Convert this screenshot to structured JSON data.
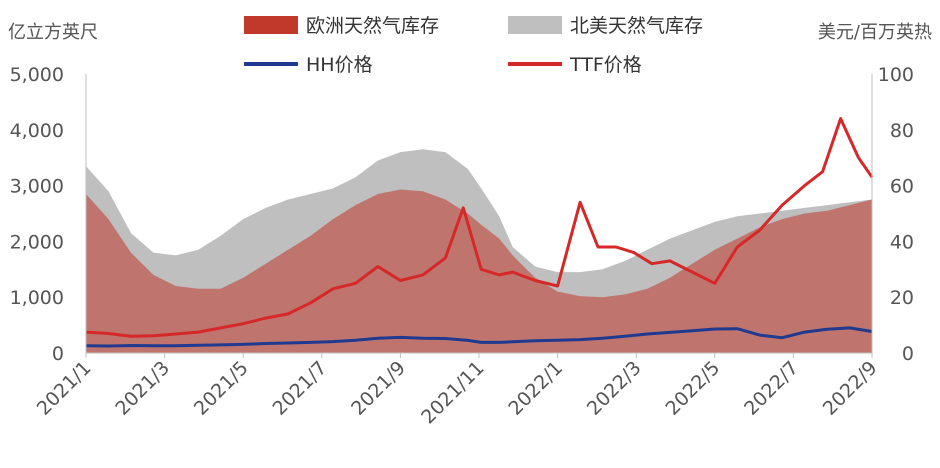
{
  "chart_data": {
    "type": "area+line",
    "left_axis_unit": "亿立方英尺",
    "right_axis_unit": "美元/百万英热",
    "left_ylim": [
      0,
      5000
    ],
    "right_ylim": [
      0,
      100
    ],
    "left_ticks": [
      "0",
      "1,000",
      "2,000",
      "3,000",
      "4,000",
      "5,000"
    ],
    "right_ticks": [
      "0",
      "20",
      "40",
      "60",
      "80",
      "100"
    ],
    "x_tick_labels": [
      "2021/1",
      "2021/3",
      "2021/5",
      "2021/7",
      "2021/9",
      "2021/11",
      "2022/1",
      "2022/3",
      "2022/5",
      "2022/7",
      "2022/9"
    ],
    "x_range": [
      2021.0,
      2022.75
    ],
    "grid": false,
    "legend_position": "top",
    "series": [
      {
        "name": "欧洲天然气库存",
        "kind": "area",
        "axis": "left",
        "color": "#c0392b",
        "x": [
          2021.0,
          2021.05,
          2021.1,
          2021.15,
          2021.2,
          2021.25,
          2021.3,
          2021.35,
          2021.4,
          2021.45,
          2021.5,
          2021.55,
          2021.6,
          2021.65,
          2021.7,
          2021.75,
          2021.8,
          2021.85,
          2021.88,
          2021.92,
          2021.95,
          2022.0,
          2022.05,
          2022.1,
          2022.15,
          2022.2,
          2022.25,
          2022.3,
          2022.35,
          2022.4,
          2022.45,
          2022.5,
          2022.55,
          2022.6,
          2022.65,
          2022.7,
          2022.75
        ],
        "values": [
          2850,
          2400,
          1800,
          1400,
          1200,
          1150,
          1150,
          1350,
          1600,
          1850,
          2100,
          2400,
          2650,
          2850,
          2930,
          2900,
          2750,
          2500,
          2300,
          2050,
          1750,
          1350,
          1100,
          1020,
          1000,
          1050,
          1150,
          1350,
          1600,
          1850,
          2050,
          2250,
          2400,
          2500,
          2550,
          2650,
          2750
        ]
      },
      {
        "name": "北美天然气库存",
        "kind": "area",
        "axis": "left",
        "color": "#bfbfbf",
        "x": [
          2021.0,
          2021.05,
          2021.1,
          2021.15,
          2021.2,
          2021.25,
          2021.3,
          2021.35,
          2021.4,
          2021.45,
          2021.5,
          2021.55,
          2021.6,
          2021.65,
          2021.7,
          2021.75,
          2021.8,
          2021.85,
          2021.88,
          2021.92,
          2021.95,
          2022.0,
          2022.05,
          2022.1,
          2022.15,
          2022.2,
          2022.25,
          2022.3,
          2022.35,
          2022.4,
          2022.45,
          2022.5,
          2022.55,
          2022.6,
          2022.65,
          2022.7,
          2022.75
        ],
        "values": [
          3350,
          2900,
          2150,
          1800,
          1750,
          1850,
          2100,
          2400,
          2600,
          2750,
          2850,
          2950,
          3150,
          3450,
          3600,
          3650,
          3600,
          3300,
          2950,
          2450,
          1900,
          1550,
          1450,
          1450,
          1500,
          1650,
          1850,
          2050,
          2200,
          2350,
          2450,
          2500,
          2550,
          2600,
          2650,
          2700,
          2750
        ]
      },
      {
        "name": "HH价格",
        "kind": "line",
        "axis": "right",
        "color": "#1f3a8f",
        "x": [
          2021.0,
          2021.05,
          2021.1,
          2021.15,
          2021.2,
          2021.25,
          2021.3,
          2021.35,
          2021.4,
          2021.45,
          2021.5,
          2021.55,
          2021.6,
          2021.65,
          2021.7,
          2021.75,
          2021.8,
          2021.85,
          2021.88,
          2021.92,
          2021.95,
          2022.0,
          2022.05,
          2022.1,
          2022.15,
          2022.2,
          2022.25,
          2022.3,
          2022.35,
          2022.4,
          2022.45,
          2022.5,
          2022.55,
          2022.6,
          2022.65,
          2022.7,
          2022.75
        ],
        "values": [
          2.6,
          2.5,
          2.7,
          2.6,
          2.6,
          2.8,
          2.9,
          3.1,
          3.4,
          3.6,
          3.8,
          4.1,
          4.6,
          5.3,
          5.6,
          5.3,
          5.2,
          4.5,
          3.8,
          3.8,
          4.0,
          4.4,
          4.6,
          4.8,
          5.3,
          6.0,
          6.8,
          7.4,
          8.0,
          8.6,
          8.7,
          6.4,
          5.5,
          7.5,
          8.5,
          9.0,
          7.7
        ]
      },
      {
        "name": "TTF价格",
        "kind": "line",
        "axis": "right",
        "color": "#d62828",
        "x": [
          2021.0,
          2021.05,
          2021.1,
          2021.15,
          2021.2,
          2021.25,
          2021.3,
          2021.35,
          2021.4,
          2021.45,
          2021.5,
          2021.55,
          2021.6,
          2021.65,
          2021.7,
          2021.75,
          2021.8,
          2021.84,
          2021.88,
          2021.92,
          2021.95,
          2022.0,
          2022.05,
          2022.1,
          2022.14,
          2022.18,
          2022.22,
          2022.26,
          2022.3,
          2022.35,
          2022.4,
          2022.45,
          2022.5,
          2022.55,
          2022.6,
          2022.64,
          2022.68,
          2022.72,
          2022.75
        ],
        "values": [
          7.5,
          7.0,
          6.0,
          6.2,
          6.8,
          7.5,
          9.0,
          10.5,
          12.5,
          14.0,
          18.0,
          23.0,
          25.0,
          31.0,
          26.0,
          28.0,
          34.0,
          52.0,
          30.0,
          28.0,
          29.0,
          26.0,
          24.0,
          54.0,
          38.0,
          38.0,
          36.0,
          32.0,
          33.0,
          29.0,
          25.0,
          38.0,
          44.0,
          53.0,
          60.0,
          65.0,
          84.0,
          70.0,
          63.0
        ]
      }
    ]
  }
}
